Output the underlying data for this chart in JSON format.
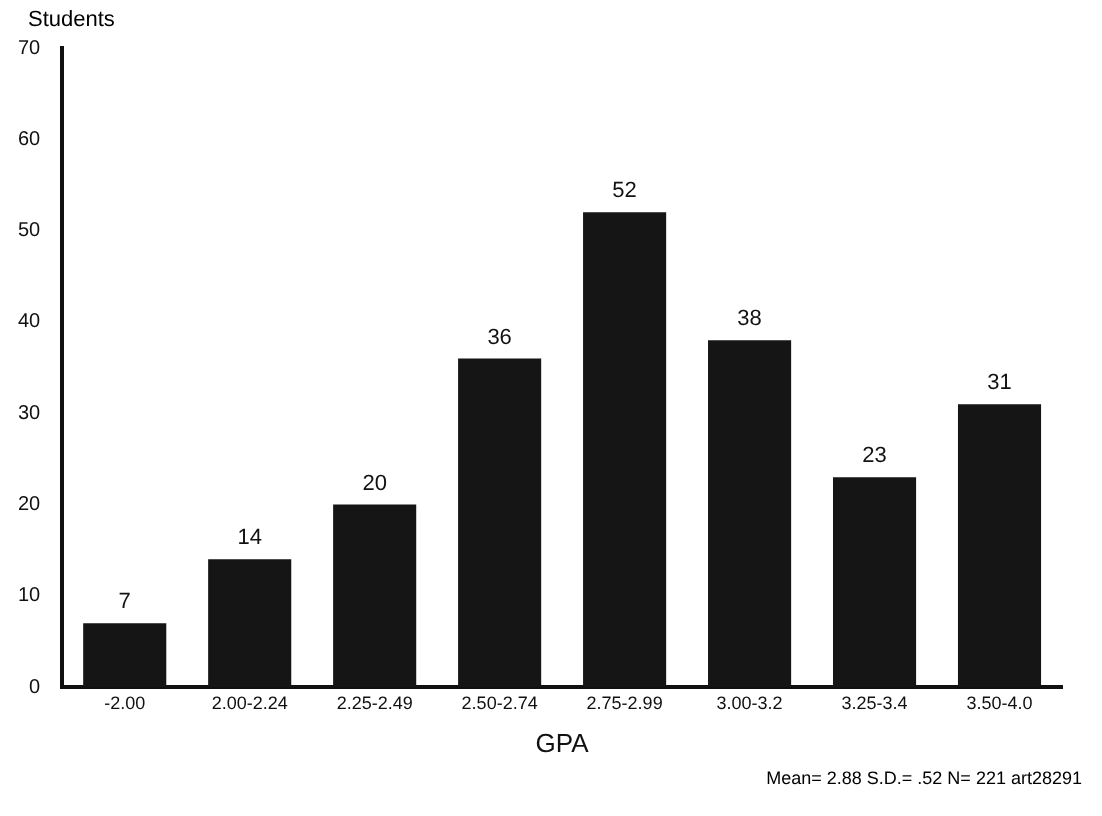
{
  "chart_data": {
    "type": "bar",
    "ylabel": "Students",
    "xlabel": "GPA",
    "categories": [
      "-2.00",
      "2.00-2.24",
      "2.25-2.49",
      "2.50-2.74",
      "2.75-2.99",
      "3.00-3.2",
      "3.25-3.4",
      "3.50-4.0"
    ],
    "values": [
      7,
      14,
      20,
      36,
      52,
      38,
      23,
      31
    ],
    "color": "#151515",
    "ylim": [
      0,
      70
    ],
    "yticks": [
      0,
      10,
      20,
      30,
      40,
      50,
      60,
      70
    ],
    "data_labels": true,
    "grid": false,
    "legend": false,
    "annotations": [
      "Mean= 2.88  S.D.= .52  N= 221  art28291"
    ]
  }
}
